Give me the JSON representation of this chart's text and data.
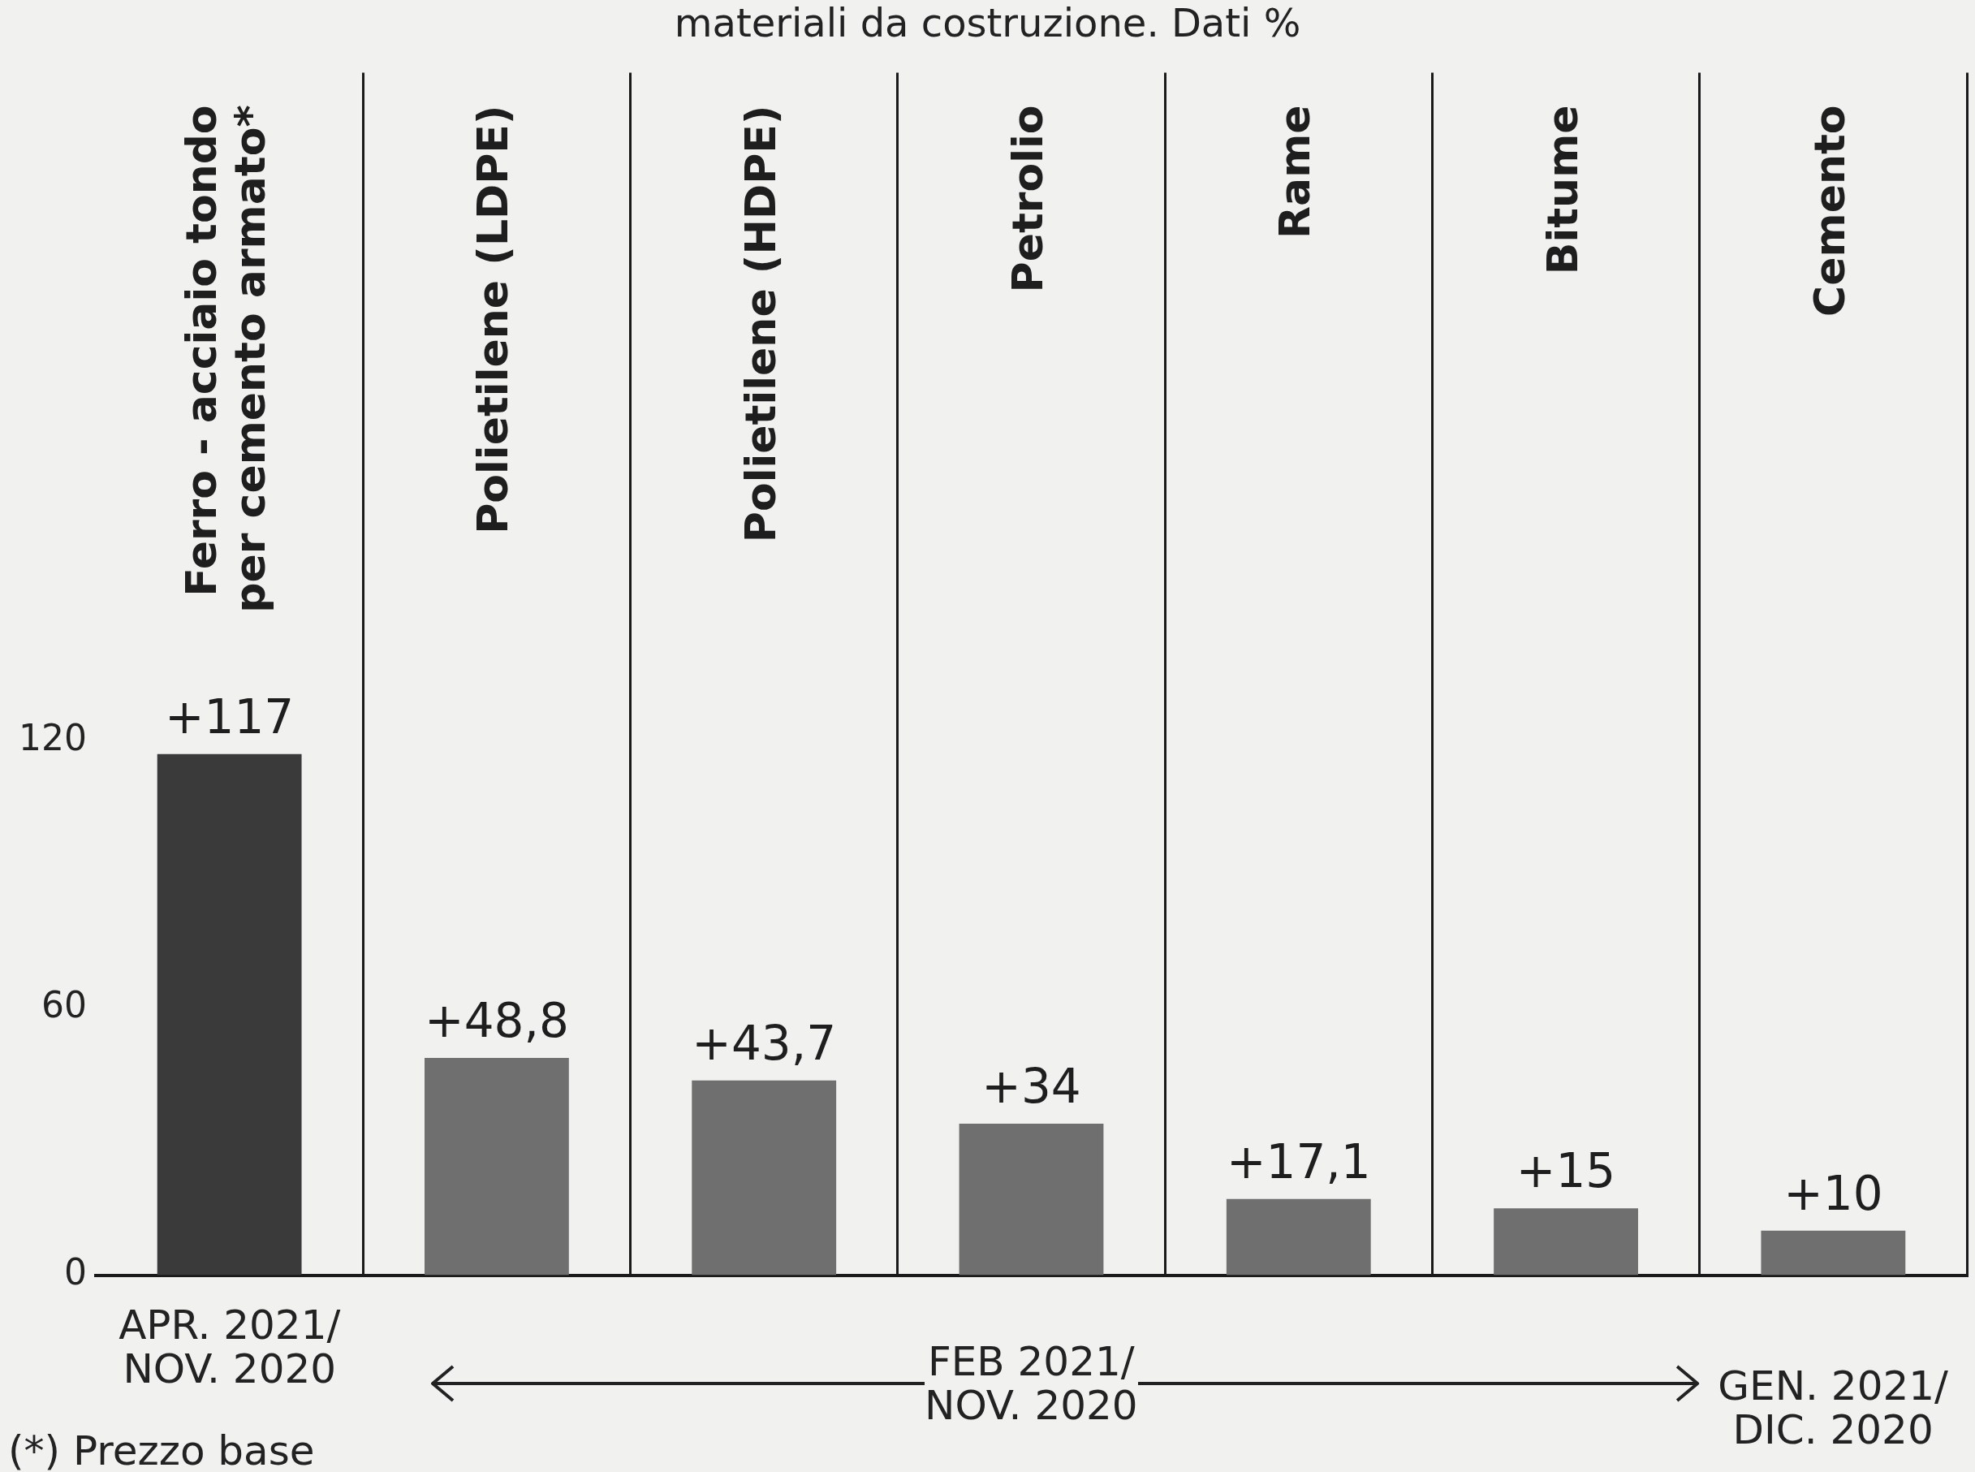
{
  "chart_data": {
    "type": "bar",
    "title": "materiali da costruzione. Dati %",
    "categories": [
      "Ferro - acciaio tondo per cemento armato*",
      "Polietilene (LDPE)",
      "Polietilene (HDPE)",
      "Petrolio",
      "Rame",
      "Bitume",
      "Cemento"
    ],
    "values": [
      117,
      48.8,
      43.7,
      34,
      17.1,
      15,
      10
    ],
    "colors": [
      "#3a3a3a",
      "#6f6f6f",
      "#6f6f6f",
      "#6f6f6f",
      "#6f6f6f",
      "#6f6f6f",
      "#6f6f6f"
    ],
    "value_labels": [
      "+117",
      "+48,8",
      "+43,7",
      "+34",
      "+17,1",
      "+15",
      "+10"
    ],
    "ylim": [
      0,
      270
    ],
    "yticks": [
      0,
      60,
      120
    ],
    "grid": "x",
    "legend": false,
    "annotations": [
      "APR. 2021/\nNOV. 2020",
      "FEB 2021/\nNOV. 2020",
      "GEN. 2021/\nDIC. 2020",
      "(*) Prezzo base"
    ]
  }
}
